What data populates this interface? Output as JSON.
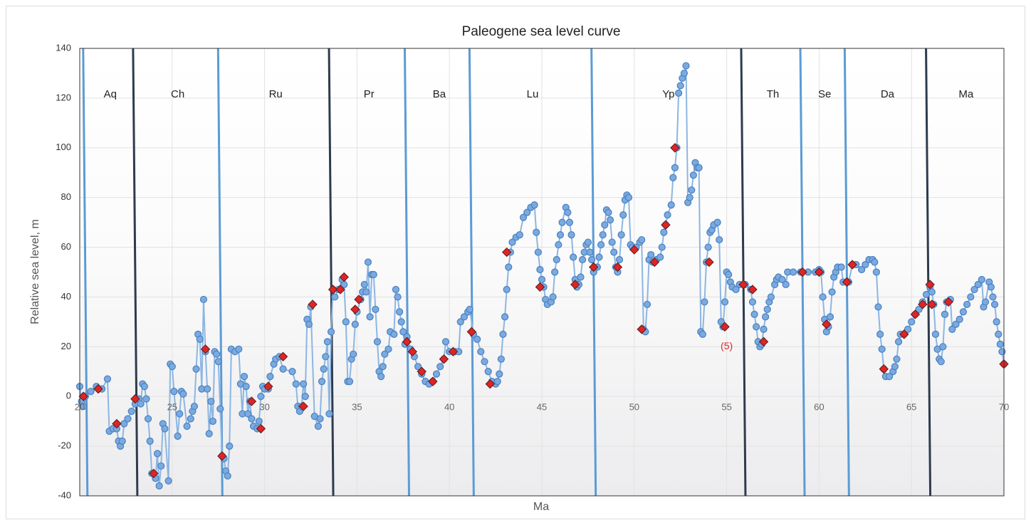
{
  "chart_data": {
    "type": "line",
    "title": "Paleogene sea level curve",
    "xlabel": "Ma",
    "ylabel": "Relative sea level, m",
    "xlim": [
      20,
      70
    ],
    "ylim": [
      -40,
      140
    ],
    "xticks": [
      20,
      25,
      30,
      35,
      40,
      45,
      50,
      55,
      60,
      65,
      70
    ],
    "yticks": [
      -40,
      -20,
      0,
      20,
      40,
      60,
      80,
      100,
      120,
      140
    ],
    "grid": true,
    "series": [
      {
        "color": "#7aaadf",
        "marker": "circle",
        "x": [
          20.0,
          20.1,
          20.2,
          20.3,
          20.6,
          20.9,
          21.2,
          21.5,
          21.6,
          21.8,
          22.0,
          22.1,
          22.2,
          22.3,
          22.4,
          22.6,
          22.8,
          23.0,
          23.2,
          23.3,
          23.4,
          23.5,
          23.6,
          23.7,
          23.8,
          23.9,
          24.1,
          24.2,
          24.3,
          24.4,
          24.5,
          24.6,
          24.8,
          24.9,
          25.0,
          25.1,
          25.3,
          25.4,
          25.5,
          25.6,
          25.8,
          26.0,
          26.1,
          26.2,
          26.3,
          26.4,
          26.5,
          26.6,
          26.7,
          26.8,
          26.9,
          27.0,
          27.1,
          27.2,
          27.3,
          27.4,
          27.5,
          27.6,
          27.7,
          27.8,
          27.9,
          28.0,
          28.1,
          28.2,
          28.4,
          28.6,
          28.7,
          28.8,
          28.9,
          29.0,
          29.1,
          29.2,
          29.3,
          29.4,
          29.6,
          29.7,
          29.8,
          29.9,
          30.0,
          30.2,
          30.3,
          30.5,
          30.6,
          30.8,
          31.0,
          31.5,
          31.7,
          31.8,
          31.9,
          32.0,
          32.1,
          32.2,
          32.3,
          32.4,
          32.5,
          32.7,
          32.9,
          33.0,
          33.1,
          33.2,
          33.3,
          33.4,
          33.5,
          33.6,
          33.7,
          33.8,
          34.0,
          34.2,
          34.3,
          34.4,
          34.5,
          34.6,
          34.7,
          34.8,
          34.9,
          35.0,
          35.2,
          35.3,
          35.4,
          35.5,
          35.6,
          35.7,
          35.8,
          35.9,
          36.0,
          36.1,
          36.2,
          36.3,
          36.4,
          36.5,
          36.7,
          36.8,
          37.0,
          37.1,
          37.2,
          37.3,
          37.4,
          37.5,
          37.6,
          37.7,
          37.9,
          38.1,
          38.3,
          38.5,
          38.7,
          38.9,
          39.1,
          39.3,
          39.5,
          39.7,
          39.8,
          40.0,
          40.3,
          40.5,
          40.6,
          40.8,
          41.0,
          41.1,
          41.3,
          41.5,
          41.7,
          41.9,
          42.1,
          42.3,
          42.5,
          42.6,
          42.7,
          42.8,
          42.9,
          43.0,
          43.1,
          43.2,
          43.3,
          43.4,
          43.6,
          43.8,
          44.0,
          44.2,
          44.4,
          44.6,
          44.7,
          44.8,
          44.9,
          45.0,
          45.1,
          45.2,
          45.3,
          45.5,
          45.6,
          45.7,
          45.8,
          45.9,
          46.0,
          46.1,
          46.3,
          46.4,
          46.5,
          46.6,
          46.7,
          46.8,
          46.9,
          47.0,
          47.1,
          47.2,
          47.3,
          47.4,
          47.5,
          47.6,
          47.7,
          47.8,
          48.0,
          48.1,
          48.2,
          48.3,
          48.4,
          48.5,
          48.6,
          48.7,
          48.8,
          48.9,
          49.0,
          49.1,
          49.2,
          49.3,
          49.4,
          49.5,
          49.6,
          49.7,
          49.8,
          49.9,
          50.1,
          50.3,
          50.4,
          50.5,
          50.6,
          50.7,
          50.8,
          50.9,
          51.0,
          51.2,
          51.4,
          51.5,
          51.6,
          51.7,
          51.8,
          52.0,
          52.1,
          52.2,
          52.3,
          52.4,
          52.5,
          52.6,
          52.7,
          52.8,
          52.9,
          53.0,
          53.1,
          53.2,
          53.3,
          53.4,
          53.5,
          53.6,
          53.7,
          53.8,
          53.9,
          54.0,
          54.1,
          54.2,
          54.3,
          54.5,
          54.6,
          54.7,
          54.8,
          54.9,
          55.0,
          55.1,
          55.2,
          55.3,
          55.5,
          55.7,
          56.0,
          56.3,
          56.4,
          56.5,
          56.6,
          56.7,
          56.8,
          56.9,
          57.0,
          57.1,
          57.2,
          57.3,
          57.4,
          57.6,
          57.7,
          57.8,
          58.0,
          58.2,
          58.3,
          58.6,
          59.0,
          59.4,
          59.8,
          60.0,
          60.1,
          60.2,
          60.3,
          60.4,
          60.5,
          60.6,
          60.7,
          60.8,
          60.9,
          61.0,
          61.2,
          61.3,
          61.6,
          61.8,
          62.0,
          62.3,
          62.5,
          62.7,
          62.9,
          63.0,
          63.1,
          63.2,
          63.3,
          63.4,
          63.5,
          63.6,
          63.8,
          64.0,
          64.1,
          64.2,
          64.3,
          64.4,
          64.6,
          64.8,
          65.0,
          65.2,
          65.4,
          65.6,
          65.8,
          66.0,
          66.1,
          66.2,
          66.3,
          66.4,
          66.5,
          66.6,
          66.7,
          66.8,
          66.9,
          67.1,
          67.2,
          67.4,
          67.6,
          67.8,
          68.0,
          68.2,
          68.4,
          68.6,
          68.8,
          68.9,
          69.0,
          69.2,
          69.3,
          69.4,
          69.5,
          69.6,
          69.7,
          69.8,
          69.9,
          70.0
        ],
        "values": [
          4,
          -2,
          -4,
          0,
          2,
          4,
          3,
          7,
          -14,
          -13,
          -13,
          -18,
          -20,
          -18,
          -11,
          -9,
          -6,
          -3,
          -1,
          -3,
          5,
          4,
          -1,
          -9,
          -18,
          -31,
          -33,
          -23,
          -36,
          -28,
          -11,
          -13,
          -34,
          13,
          12,
          2,
          -16,
          -7,
          2,
          1,
          -12,
          -9,
          -6,
          -4,
          11,
          25,
          23,
          3,
          39,
          18,
          3,
          -15,
          -2,
          -10,
          18,
          17,
          14,
          -5,
          -24,
          -25,
          -30,
          -32,
          -20,
          19,
          18,
          19,
          5,
          -7,
          8,
          4,
          -7,
          -2,
          -9,
          -12,
          -13,
          -10,
          0,
          4,
          3,
          3,
          8,
          13,
          15,
          16,
          11,
          10,
          5,
          -4,
          -6,
          -4,
          5,
          0,
          31,
          29,
          36,
          -8,
          -12,
          -9,
          6,
          11,
          16,
          22,
          -7,
          26,
          43,
          40,
          43,
          47,
          45,
          30,
          6,
          6,
          15,
          17,
          29,
          34,
          39,
          42,
          45,
          42,
          54,
          32,
          49,
          49,
          35,
          22,
          10,
          8,
          12,
          17,
          19,
          26,
          25,
          43,
          40,
          34,
          30,
          26,
          21,
          24,
          19,
          16,
          12,
          9,
          6,
          5,
          6,
          9,
          12,
          15,
          22,
          18,
          18,
          18,
          30,
          32,
          34,
          35,
          25,
          23,
          18,
          14,
          10,
          6,
          5,
          6,
          9,
          15,
          25,
          32,
          43,
          52,
          58,
          62,
          64,
          65,
          72,
          74,
          76,
          77,
          66,
          58,
          51,
          47,
          44,
          39,
          37,
          38,
          40,
          50,
          55,
          61,
          65,
          70,
          76,
          74,
          70,
          65,
          56,
          47,
          44,
          45,
          48,
          55,
          58,
          61,
          62,
          58,
          55,
          50,
          52,
          56,
          61,
          65,
          69,
          75,
          74,
          71,
          62,
          58,
          52,
          50,
          55,
          65,
          73,
          79,
          81,
          80,
          61,
          60,
          60,
          62,
          63,
          27,
          26,
          37,
          55,
          57,
          54,
          55,
          56,
          60,
          66,
          69,
          73,
          77,
          88,
          92,
          100,
          122,
          125,
          128,
          130,
          133,
          78,
          80,
          83,
          89,
          94,
          92,
          92,
          26,
          25,
          38,
          54,
          60,
          66,
          67,
          69,
          70,
          63,
          30,
          28,
          38,
          50,
          49,
          46,
          44,
          43,
          45,
          45,
          43,
          38,
          33,
          28,
          22,
          20,
          21,
          27,
          32,
          35,
          38,
          40,
          45,
          47,
          48,
          47,
          45,
          50,
          50,
          50,
          50,
          50,
          51,
          50,
          40,
          31,
          26,
          28,
          32,
          42,
          48,
          50,
          52,
          52,
          46,
          46,
          53,
          53,
          51,
          53,
          55,
          55,
          54,
          50,
          36,
          25,
          19,
          11,
          8,
          8,
          10,
          12,
          15,
          22,
          25,
          25,
          27,
          30,
          33,
          35,
          38,
          41,
          44,
          42,
          37,
          25,
          19,
          15,
          14,
          20,
          33,
          38,
          39,
          27,
          29,
          31,
          34,
          37,
          40,
          43,
          45,
          47,
          36,
          38,
          46,
          44,
          40,
          37,
          30,
          25,
          21,
          18,
          13
        ]
      },
      {
        "color": "#e02424",
        "marker": "diamond",
        "x": [
          20.2,
          21.0,
          22.0,
          23.0,
          24.0,
          26.8,
          27.7,
          29.3,
          29.8,
          30.2,
          31.0,
          32.1,
          32.6,
          33.7,
          34.1,
          34.3,
          34.9,
          35.1,
          37.7,
          38.0,
          38.5,
          39.1,
          39.7,
          40.2,
          41.2,
          42.2,
          43.1,
          44.9,
          46.8,
          47.8,
          49.1,
          50.0,
          50.4,
          51.1,
          51.7,
          52.2,
          54.05,
          54.9,
          55.9,
          56.4,
          57.0,
          59.1,
          60.0,
          60.4,
          61.5,
          61.8,
          63.5,
          64.6,
          65.2,
          65.6,
          66.0,
          66.1,
          67.0,
          70.0
        ],
        "values": [
          0,
          3,
          -11,
          -1,
          -31,
          19,
          -24,
          -2,
          -13,
          4,
          16,
          -4,
          37,
          43,
          43,
          48,
          35,
          39,
          22,
          18,
          10,
          6,
          15,
          18,
          26,
          5,
          58,
          44,
          45,
          52,
          52,
          59,
          27,
          54,
          69,
          100,
          54,
          28,
          45,
          43,
          22,
          50,
          50,
          29,
          46,
          53,
          11,
          25,
          33,
          37,
          45,
          37,
          38,
          13
        ]
      }
    ],
    "boundaries": [
      {
        "value": 20.3,
        "color": "#5b9bd5"
      },
      {
        "value": 23.0,
        "color": "#2e3b4e"
      },
      {
        "value": 27.6,
        "color": "#5b9bd5"
      },
      {
        "value": 33.6,
        "color": "#2e3b4e"
      },
      {
        "value": 37.7,
        "color": "#5b9bd5"
      },
      {
        "value": 41.2,
        "color": "#5b9bd5"
      },
      {
        "value": 47.8,
        "color": "#5b9bd5"
      },
      {
        "value": 55.9,
        "color": "#2e3b4e"
      },
      {
        "value": 59.1,
        "color": "#5b9bd5"
      },
      {
        "value": 61.5,
        "color": "#5b9bd5"
      },
      {
        "value": 65.9,
        "color": "#2e3b4e"
      }
    ],
    "stages": [
      "Aq",
      "Ch",
      "Ru",
      "Pr",
      "Ba",
      "Lu",
      "Yp",
      "Th",
      "Se",
      "Da",
      "Ma"
    ],
    "annotations": [
      {
        "text": "(5)",
        "x": 55.0,
        "y": 20,
        "color": "#e02424"
      }
    ]
  }
}
